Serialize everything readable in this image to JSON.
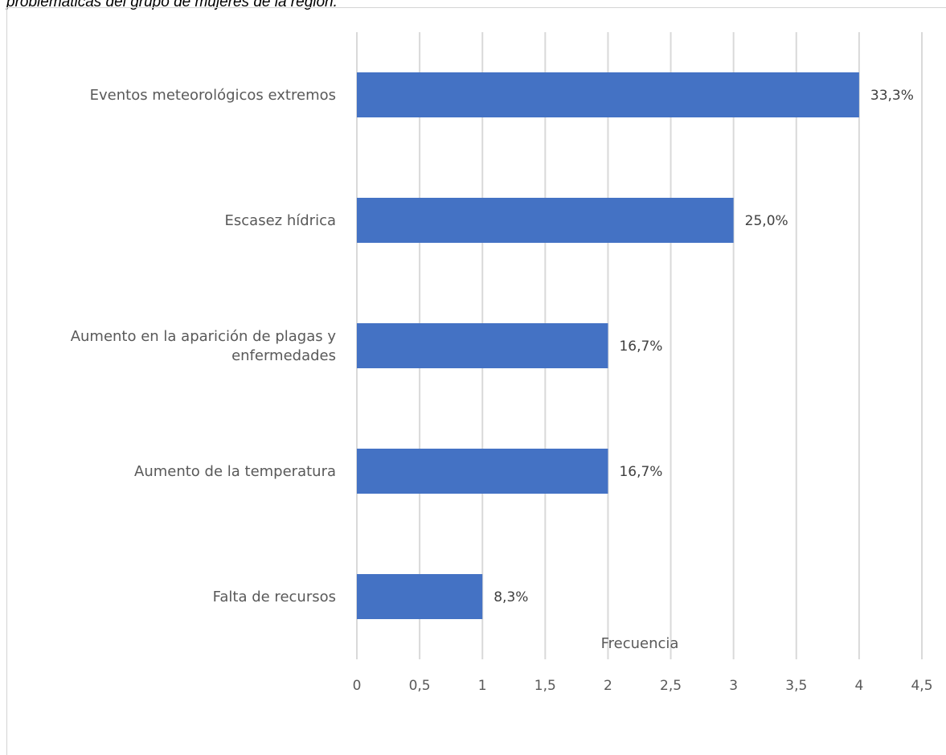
{
  "caption": "problemáticas del grupo de mujeres de la región.",
  "chart_data": {
    "type": "bar",
    "orientation": "horizontal",
    "categories": [
      "Eventos meteorológicos extremos",
      "Escasez hídrica",
      "Aumento en la aparición de plagas y enfermedades",
      "Aumento de la temperatura",
      "Falta de recursos"
    ],
    "category_lines": [
      [
        "Eventos meteorológicos extremos"
      ],
      [
        "Escasez hídrica"
      ],
      [
        "Aumento en la aparición de plagas y",
        "enfermedades"
      ],
      [
        "Aumento de la temperatura"
      ],
      [
        "Falta de recursos"
      ]
    ],
    "values": [
      4,
      3,
      2,
      2,
      1
    ],
    "data_labels": [
      "33,3%",
      "25,0%",
      "16,7%",
      "16,7%",
      "8,3%"
    ],
    "xlabel": "Frecuencia",
    "ylabel": "",
    "xlim": [
      0,
      4.5
    ],
    "x_ticks": [
      0,
      0.5,
      1,
      1.5,
      2,
      2.5,
      3,
      3.5,
      4,
      4.5
    ],
    "x_tick_labels": [
      "0",
      "0,5",
      "1",
      "1,5",
      "2",
      "2,5",
      "3",
      "3,5",
      "4",
      "4,5"
    ],
    "grid": "vertical",
    "legend": "none",
    "bar_color": "#4472c4",
    "grid_color": "#d9d9d9"
  }
}
